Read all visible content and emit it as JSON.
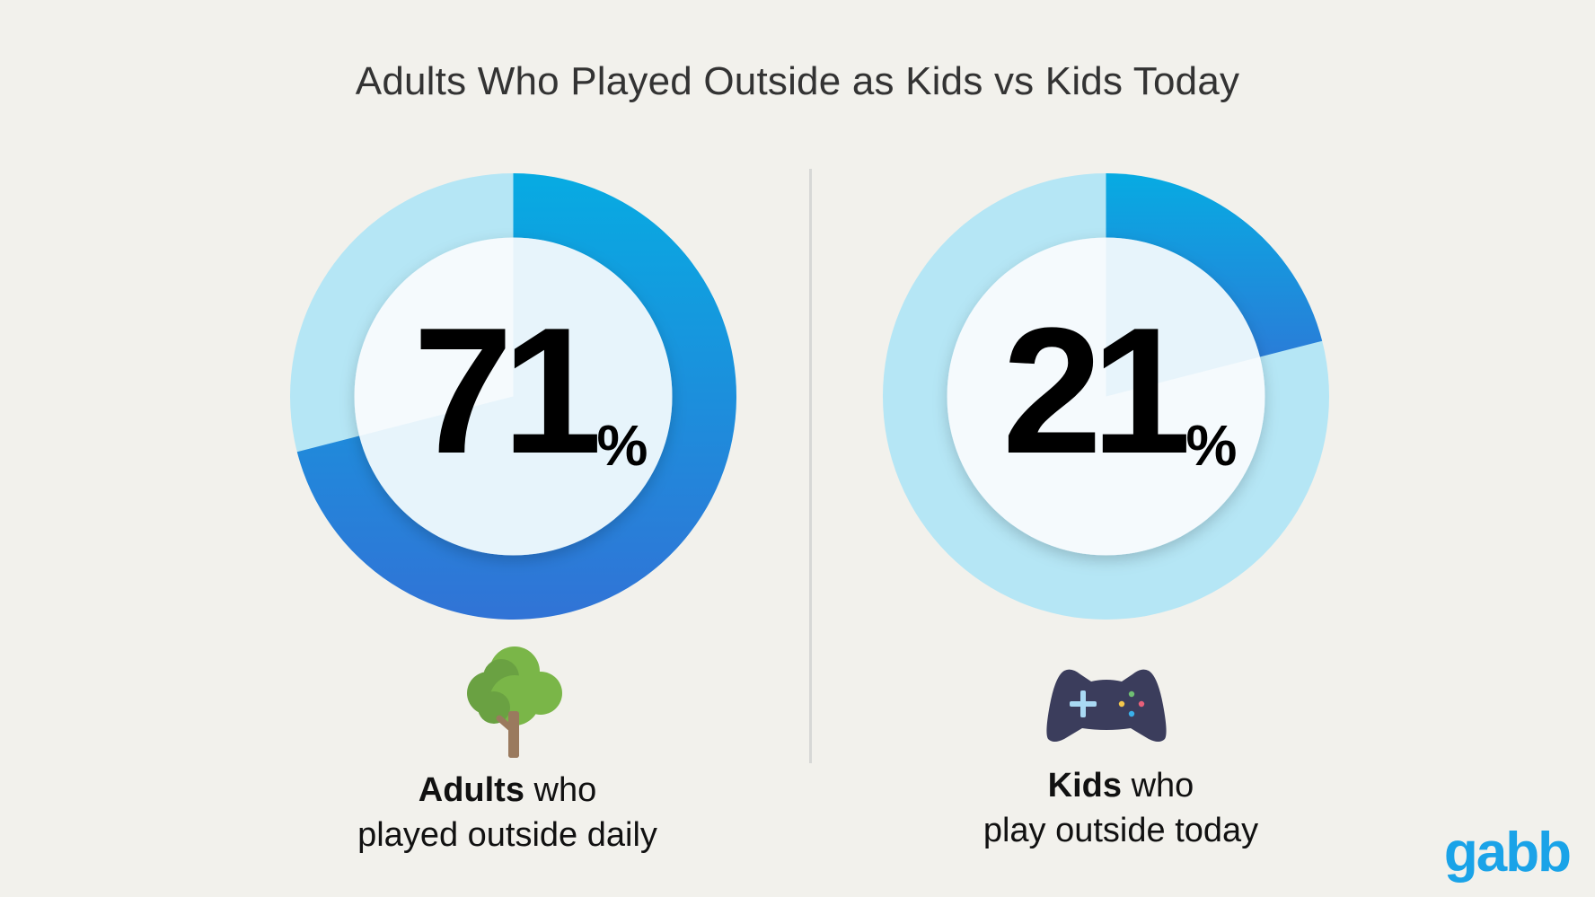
{
  "title": "Adults Who Played Outside as Kids vs Kids Today",
  "panels": [
    {
      "value": "71",
      "unit": "%",
      "caption_bold": "Adults",
      "caption_rest": "who",
      "caption_line2": "played outside daily",
      "icon": "tree-icon"
    },
    {
      "value": "21",
      "unit": "%",
      "caption_bold": "Kids",
      "caption_rest": "who",
      "caption_line2": "play outside today",
      "icon": "game-controller-icon"
    }
  ],
  "logo": "gabb",
  "colors": {
    "background": "#f2f1ec",
    "track": "#b5e6f5",
    "fill_top": "#07abe2",
    "fill_bottom": "#3173d6",
    "logo": "#1aa3e8"
  },
  "chart_data": [
    {
      "type": "pie",
      "categories": [
        "Adults who played outside daily"
      ],
      "values": [
        71
      ],
      "unit": "%",
      "title": "Adults Who Played Outside as Kids vs Kids Today"
    },
    {
      "type": "pie",
      "categories": [
        "Kids who play outside today"
      ],
      "values": [
        21
      ],
      "unit": "%",
      "title": "Adults Who Played Outside as Kids vs Kids Today"
    }
  ]
}
